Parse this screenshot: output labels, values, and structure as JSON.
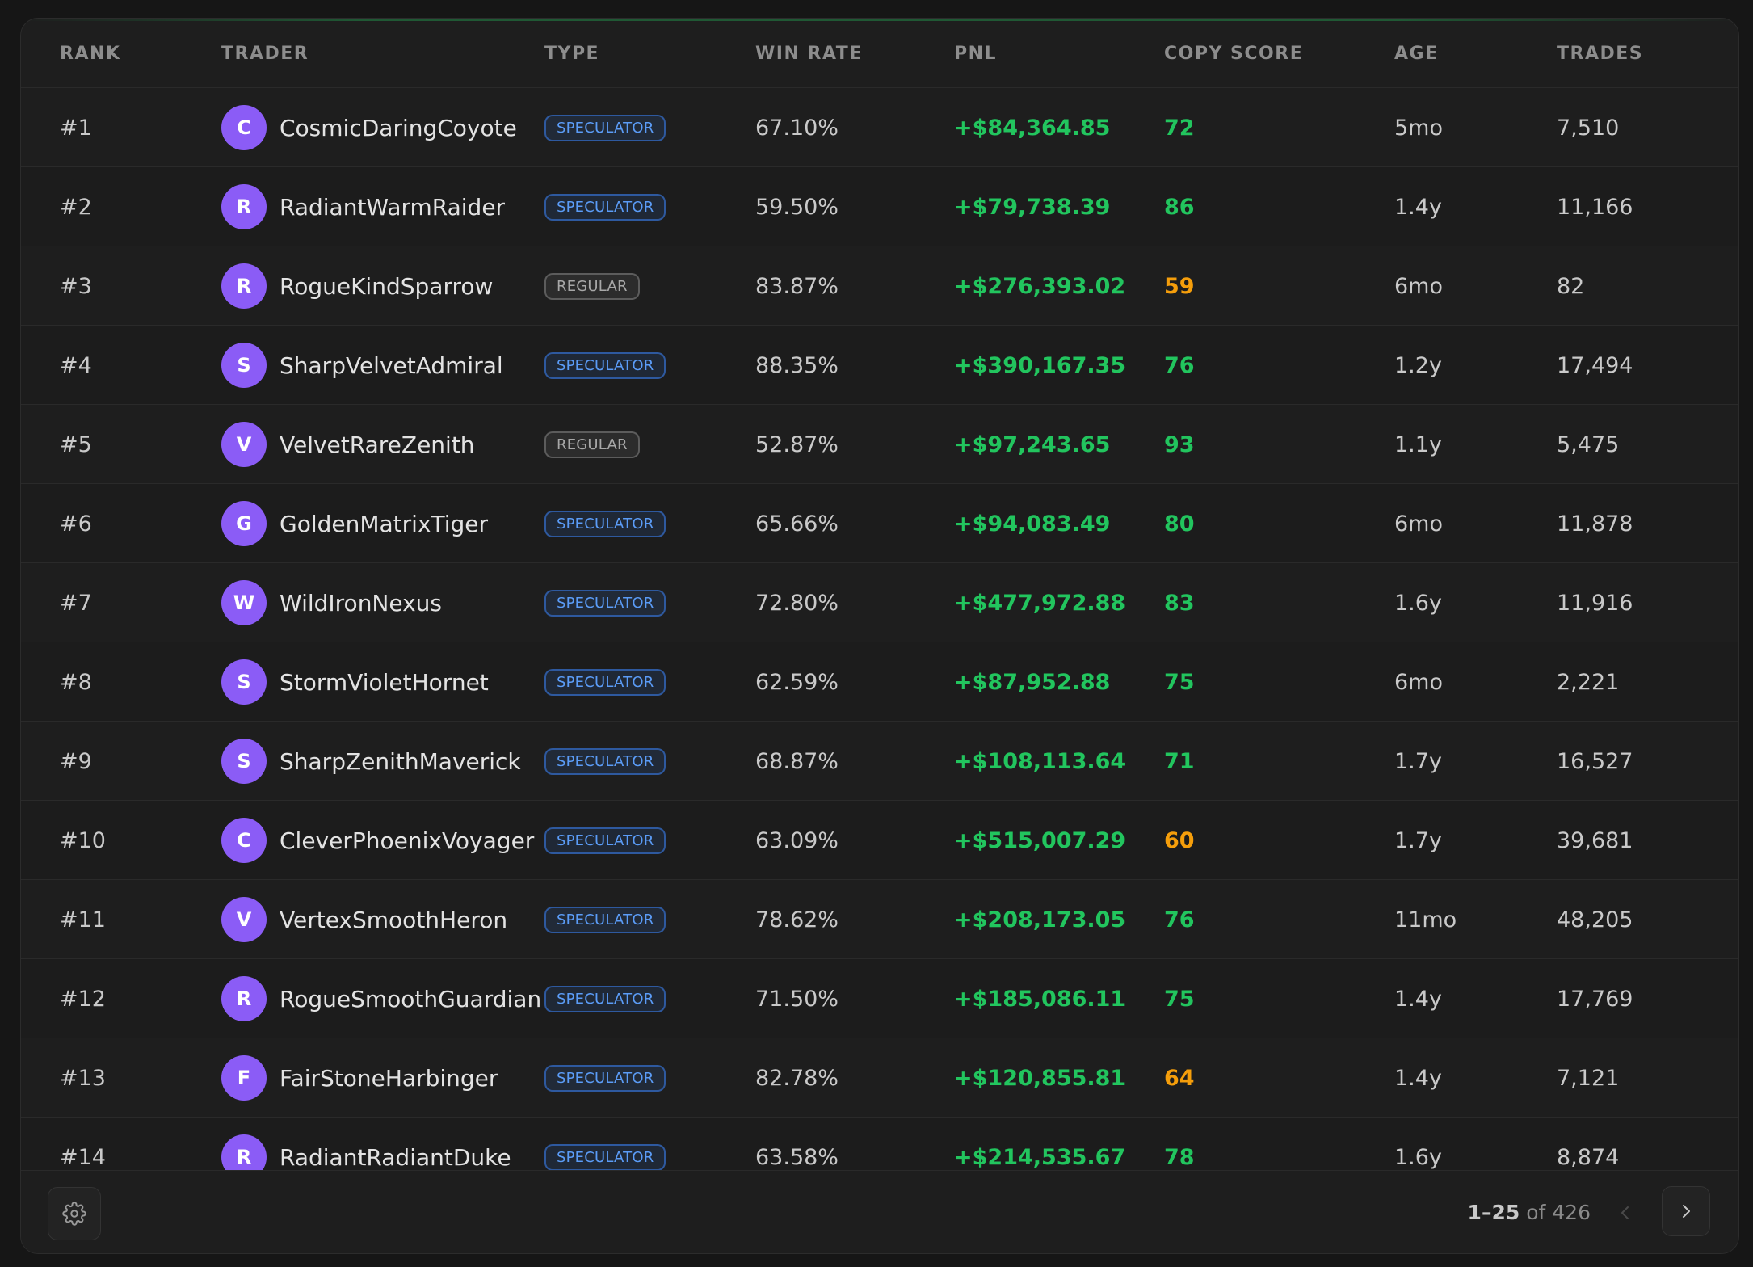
{
  "table": {
    "headers": {
      "rank": "RANK",
      "trader": "TRADER",
      "type": "TYPE",
      "win_rate": "WIN RATE",
      "pnl": "PNL",
      "copy_score": "COPY SCORE",
      "age": "AGE",
      "trades": "TRADES"
    },
    "rows": [
      {
        "rank": "#1",
        "initial": "C",
        "name": "CosmicDaringCoyote",
        "type": "SPECULATOR",
        "type_kind": "speculator",
        "win_rate": "67.10%",
        "pnl": "+$84,364.85",
        "score": "72",
        "score_level": "good",
        "age": "5mo",
        "trades": "7,510"
      },
      {
        "rank": "#2",
        "initial": "R",
        "name": "RadiantWarmRaider",
        "type": "SPECULATOR",
        "type_kind": "speculator",
        "win_rate": "59.50%",
        "pnl": "+$79,738.39",
        "score": "86",
        "score_level": "good",
        "age": "1.4y",
        "trades": "11,166"
      },
      {
        "rank": "#3",
        "initial": "R",
        "name": "RogueKindSparrow",
        "type": "REGULAR",
        "type_kind": "regular",
        "win_rate": "83.87%",
        "pnl": "+$276,393.02",
        "score": "59",
        "score_level": "warn",
        "age": "6mo",
        "trades": "82"
      },
      {
        "rank": "#4",
        "initial": "S",
        "name": "SharpVelvetAdmiral",
        "type": "SPECULATOR",
        "type_kind": "speculator",
        "win_rate": "88.35%",
        "pnl": "+$390,167.35",
        "score": "76",
        "score_level": "good",
        "age": "1.2y",
        "trades": "17,494"
      },
      {
        "rank": "#5",
        "initial": "V",
        "name": "VelvetRareZenith",
        "type": "REGULAR",
        "type_kind": "regular",
        "win_rate": "52.87%",
        "pnl": "+$97,243.65",
        "score": "93",
        "score_level": "good",
        "age": "1.1y",
        "trades": "5,475"
      },
      {
        "rank": "#6",
        "initial": "G",
        "name": "GoldenMatrixTiger",
        "type": "SPECULATOR",
        "type_kind": "speculator",
        "win_rate": "65.66%",
        "pnl": "+$94,083.49",
        "score": "80",
        "score_level": "good",
        "age": "6mo",
        "trades": "11,878"
      },
      {
        "rank": "#7",
        "initial": "W",
        "name": "WildIronNexus",
        "type": "SPECULATOR",
        "type_kind": "speculator",
        "win_rate": "72.80%",
        "pnl": "+$477,972.88",
        "score": "83",
        "score_level": "good",
        "age": "1.6y",
        "trades": "11,916"
      },
      {
        "rank": "#8",
        "initial": "S",
        "name": "StormVioletHornet",
        "type": "SPECULATOR",
        "type_kind": "speculator",
        "win_rate": "62.59%",
        "pnl": "+$87,952.88",
        "score": "75",
        "score_level": "good",
        "age": "6mo",
        "trades": "2,221"
      },
      {
        "rank": "#9",
        "initial": "S",
        "name": "SharpZenithMaverick",
        "type": "SPECULATOR",
        "type_kind": "speculator",
        "win_rate": "68.87%",
        "pnl": "+$108,113.64",
        "score": "71",
        "score_level": "good",
        "age": "1.7y",
        "trades": "16,527"
      },
      {
        "rank": "#10",
        "initial": "C",
        "name": "CleverPhoenixVoyager",
        "type": "SPECULATOR",
        "type_kind": "speculator",
        "win_rate": "63.09%",
        "pnl": "+$515,007.29",
        "score": "60",
        "score_level": "warn",
        "age": "1.7y",
        "trades": "39,681"
      },
      {
        "rank": "#11",
        "initial": "V",
        "name": "VertexSmoothHeron",
        "type": "SPECULATOR",
        "type_kind": "speculator",
        "win_rate": "78.62%",
        "pnl": "+$208,173.05",
        "score": "76",
        "score_level": "good",
        "age": "11mo",
        "trades": "48,205"
      },
      {
        "rank": "#12",
        "initial": "R",
        "name": "RogueSmoothGuardian",
        "type": "SPECULATOR",
        "type_kind": "speculator",
        "win_rate": "71.50%",
        "pnl": "+$185,086.11",
        "score": "75",
        "score_level": "good",
        "age": "1.4y",
        "trades": "17,769"
      },
      {
        "rank": "#13",
        "initial": "F",
        "name": "FairStoneHarbinger",
        "type": "SPECULATOR",
        "type_kind": "speculator",
        "win_rate": "82.78%",
        "pnl": "+$120,855.81",
        "score": "64",
        "score_level": "warn",
        "age": "1.4y",
        "trades": "7,121"
      },
      {
        "rank": "#14",
        "initial": "R",
        "name": "RadiantRadiantDuke",
        "type": "SPECULATOR",
        "type_kind": "speculator",
        "win_rate": "63.58%",
        "pnl": "+$214,535.67",
        "score": "78",
        "score_level": "good",
        "age": "1.6y",
        "trades": "8,874"
      }
    ]
  },
  "footer": {
    "settings_icon": "gear-icon",
    "range": "1–25",
    "of_text": "of 426",
    "prev_icon": "chevron-left-icon",
    "next_icon": "chevron-right-icon"
  },
  "colors": {
    "avatar": "#8b5cf6",
    "pnl_positive": "#22c55e",
    "score_good": "#22c55e",
    "score_warn": "#f59e0b",
    "badge_speculator": "#5b9cf7",
    "badge_regular": "#a8a8a8"
  }
}
